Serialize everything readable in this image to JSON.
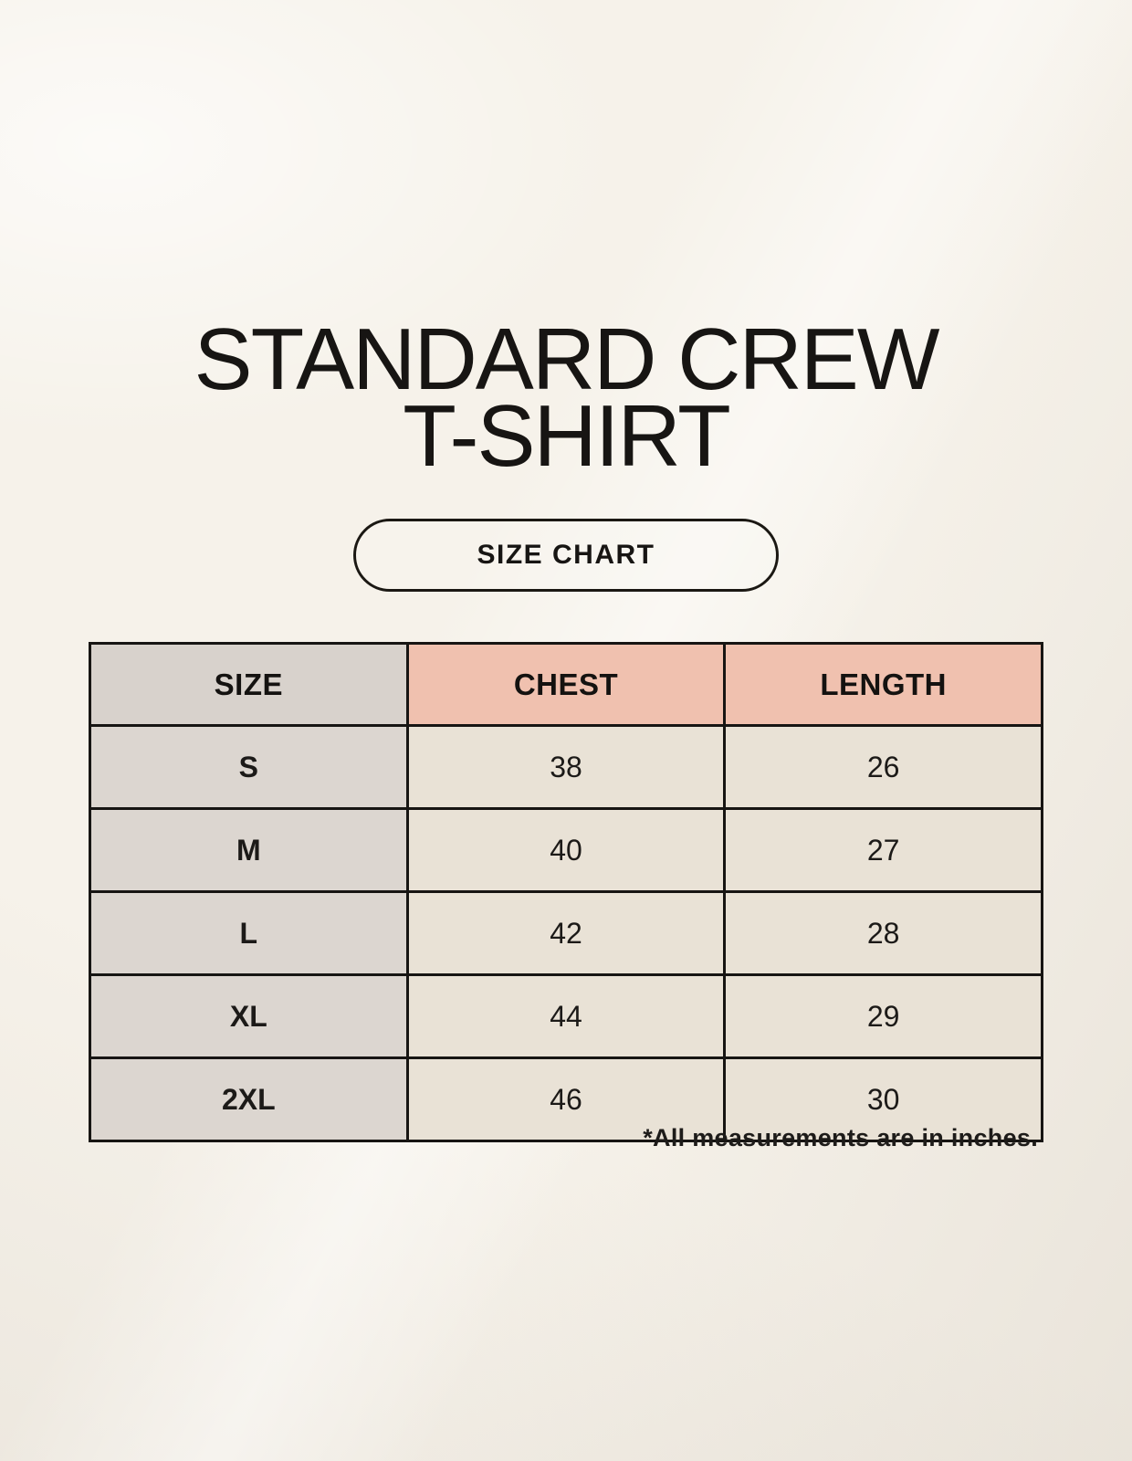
{
  "page": {
    "title_line1": "STANDARD CREW",
    "title_line2": "T-SHIRT",
    "button_label": "SIZE CHART",
    "footnote": "*All measurements are in inches."
  },
  "colors": {
    "background": "#f6f2ea",
    "table_border": "#171513",
    "header_size_bg": "#d8d2cc",
    "header_measure_bg": "#f0c1af",
    "size_column_bg": "#dcd6d0",
    "value_cell_bg": "#e9e2d6",
    "text": "#171513"
  },
  "chart_data": {
    "type": "table",
    "title": "STANDARD CREW T-SHIRT SIZE CHART",
    "columns": [
      "SIZE",
      "CHEST",
      "LENGTH"
    ],
    "rows": [
      {
        "size": "S",
        "chest": 38,
        "length": 26
      },
      {
        "size": "M",
        "chest": 40,
        "length": 27
      },
      {
        "size": "L",
        "chest": 42,
        "length": 28
      },
      {
        "size": "XL",
        "chest": 44,
        "length": 29
      },
      {
        "size": "2XL",
        "chest": 46,
        "length": 30
      }
    ],
    "units": "inches"
  }
}
